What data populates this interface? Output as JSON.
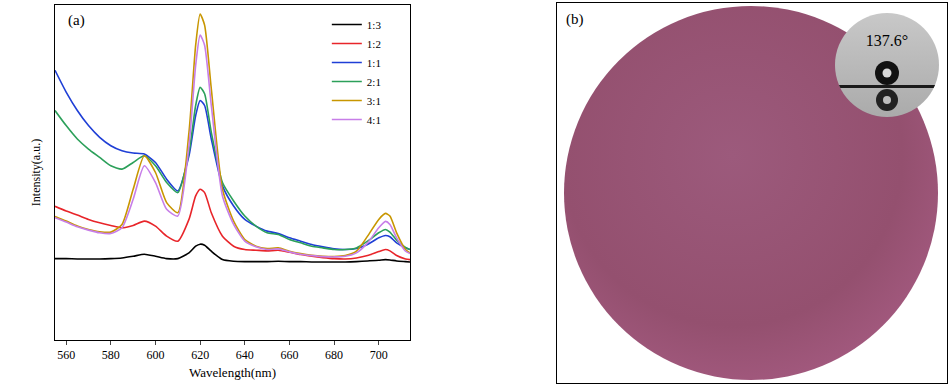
{
  "chart_data": {
    "type": "line",
    "title": "(a)",
    "x_label": "Wavelength(nm)",
    "y_label": "Intensity(a.u.)",
    "x": [
      555,
      560,
      565,
      570,
      575,
      580,
      585,
      590,
      595,
      600,
      605,
      610,
      615,
      618,
      620,
      622,
      625,
      630,
      635,
      640,
      645,
      650,
      655,
      660,
      665,
      670,
      675,
      680,
      685,
      690,
      695,
      700,
      703,
      705,
      708,
      712,
      714
    ],
    "series": [
      {
        "name": "1:3",
        "color": "#000000",
        "values": [
          24.3,
          24.3,
          24.2,
          24.2,
          24.2,
          24.3,
          24.5,
          25.0,
          25.6,
          25.0,
          24.3,
          24.3,
          26.0,
          28.0,
          28.6,
          28.3,
          26.5,
          24.0,
          23.5,
          23.4,
          23.4,
          23.4,
          23.5,
          23.4,
          23.4,
          23.3,
          23.3,
          23.3,
          23.3,
          23.4,
          23.6,
          23.8,
          24.0,
          23.9,
          23.6,
          23.4,
          23.3
        ]
      },
      {
        "name": "1:2",
        "color": "#e8252a",
        "values": [
          39.9,
          38.5,
          37.3,
          36.0,
          35.0,
          34.2,
          33.5,
          34.2,
          35.5,
          34.0,
          31.0,
          29.5,
          36,
          43,
          45,
          44,
          38,
          31,
          28,
          27,
          26.8,
          26.6,
          26.8,
          26.2,
          25.5,
          25,
          24.6,
          24.3,
          24.2,
          24.5,
          25.2,
          26.4,
          27.0,
          26.6,
          25.2,
          24.2,
          24.0
        ]
      },
      {
        "name": "1:1",
        "color": "#1f3fd6",
        "values": [
          80.5,
          74,
          68.5,
          64,
          60.5,
          58,
          56.5,
          55.8,
          55.5,
          53,
          48,
          44.5,
          55,
          67,
          71.5,
          70,
          60,
          46,
          40,
          36,
          34,
          32.5,
          31.8,
          30.5,
          29.5,
          28.5,
          27.8,
          27.2,
          27,
          27.3,
          28.5,
          30.5,
          31.2,
          30.8,
          29,
          27.5,
          27
        ]
      },
      {
        "name": "2:1",
        "color": "#2ca05a",
        "values": [
          68.5,
          64,
          60,
          57,
          54.5,
          52,
          51,
          53,
          55,
          52,
          47,
          44,
          56,
          70,
          75.4,
          73.5,
          62,
          47,
          41.5,
          37,
          34,
          32,
          31.5,
          30,
          29,
          28,
          27.5,
          27,
          27,
          27.5,
          29.5,
          32,
          33,
          32.2,
          29.8,
          27.6,
          27
        ]
      },
      {
        "name": "3:1",
        "color": "#c89600",
        "values": [
          36.9,
          35.5,
          34,
          33,
          32.3,
          32.2,
          34.5,
          45,
          55,
          50,
          41,
          38,
          62,
          88,
          97.3,
          94,
          75,
          45,
          35.5,
          30,
          28,
          27.3,
          27.5,
          26.5,
          25.8,
          25.3,
          25,
          24.9,
          25.2,
          26.5,
          31,
          36,
          37.8,
          37,
          32,
          27,
          26
        ]
      },
      {
        "name": "4:1",
        "color": "#c77ee8",
        "values": [
          36.5,
          35.2,
          33.8,
          32.8,
          32,
          31.8,
          33.5,
          42,
          52,
          47,
          39,
          37,
          58,
          82,
          91,
          88,
          70,
          43,
          34.5,
          29.5,
          27.8,
          27,
          27.2,
          26.3,
          25.6,
          25.2,
          24.9,
          24.8,
          25,
          26,
          29,
          33.5,
          35.4,
          34.5,
          30.5,
          26.5,
          25.8
        ]
      }
    ],
    "xlim": [
      555,
      714
    ],
    "xticks": [
      560,
      580,
      600,
      620,
      640,
      660,
      680,
      700
    ],
    "ylim": [
      0,
      100
    ],
    "tick_labels": "x",
    "legend": "upper right",
    "grid": false
  },
  "photo": {
    "label": "(b)",
    "contact_angle": "137.6°"
  }
}
